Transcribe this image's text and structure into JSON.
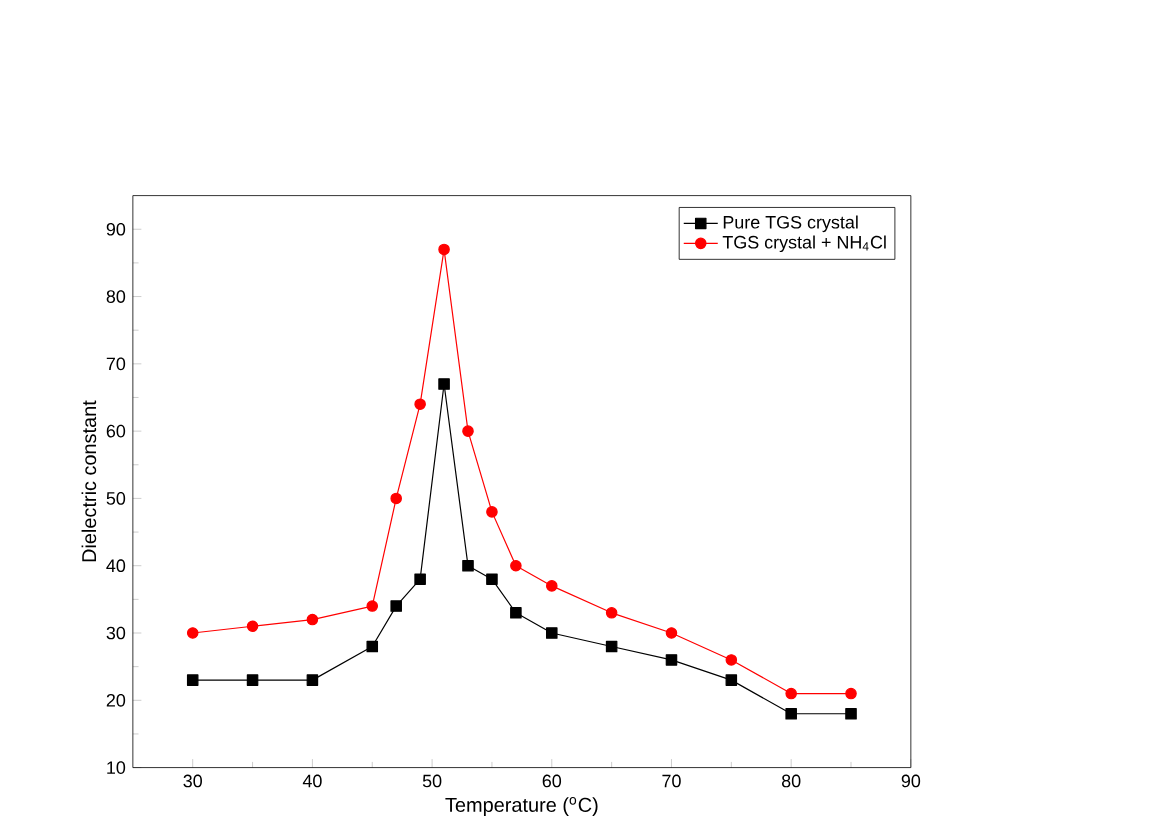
{
  "chart_data": {
    "type": "line",
    "xlabel": "Temperature ($^{o}$C)",
    "ylabel": "Dielectric constant",
    "x": [
      30,
      35,
      40,
      45,
      47,
      49,
      51,
      53,
      55,
      57,
      60,
      65,
      70,
      75,
      80,
      85
    ],
    "series": [
      {
        "name": "Pure TGS crystal",
        "color": "#000000",
        "marker": "square",
        "values": [
          23,
          23,
          23,
          28,
          34,
          38,
          67,
          40,
          38,
          33,
          30,
          28,
          26,
          23,
          18,
          18
        ]
      },
      {
        "name": "TGS crystal + NH$_{4}$Cl",
        "color": "#ff0000",
        "marker": "circle",
        "values": [
          30,
          31,
          32,
          34,
          50,
          64,
          87,
          60,
          48,
          40,
          37,
          33,
          30,
          26,
          21,
          21
        ]
      }
    ],
    "xlim": [
      25,
      90
    ],
    "ylim": [
      10,
      95
    ],
    "xticks": [
      30,
      40,
      50,
      60,
      70,
      80,
      90
    ],
    "yticks": [
      10,
      20,
      30,
      40,
      50,
      60,
      70,
      80,
      90
    ],
    "legend": "top right",
    "grid": false
  }
}
